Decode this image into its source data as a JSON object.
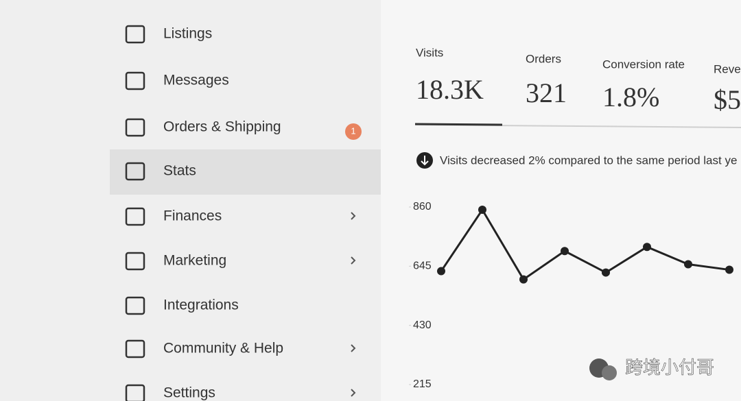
{
  "sidebar": {
    "items": [
      {
        "label": "Listings"
      },
      {
        "label": "Messages"
      },
      {
        "label": "Orders & Shipping",
        "badge": "1"
      },
      {
        "label": "Stats"
      },
      {
        "label": "Finances"
      },
      {
        "label": "Marketing"
      },
      {
        "label": "Integrations"
      },
      {
        "label": "Community & Help"
      },
      {
        "label": "Settings"
      }
    ]
  },
  "metrics": [
    {
      "label": "Visits",
      "value": "18.3K"
    },
    {
      "label": "Orders",
      "value": "321"
    },
    {
      "label": "Conversion rate",
      "value": "1.8%"
    },
    {
      "label": "Reven",
      "value": "$5,"
    }
  ],
  "notice": "Visits decreased 2% compared to the same period last ye",
  "chart_data": {
    "type": "line",
    "values": [
      627,
      850,
      597,
      700,
      622,
      715,
      652,
      632
    ],
    "color": "#222222",
    "ylim": [
      215,
      860
    ],
    "yticks": [
      860,
      645,
      430,
      215
    ]
  },
  "watermark": "跨境小付哥"
}
